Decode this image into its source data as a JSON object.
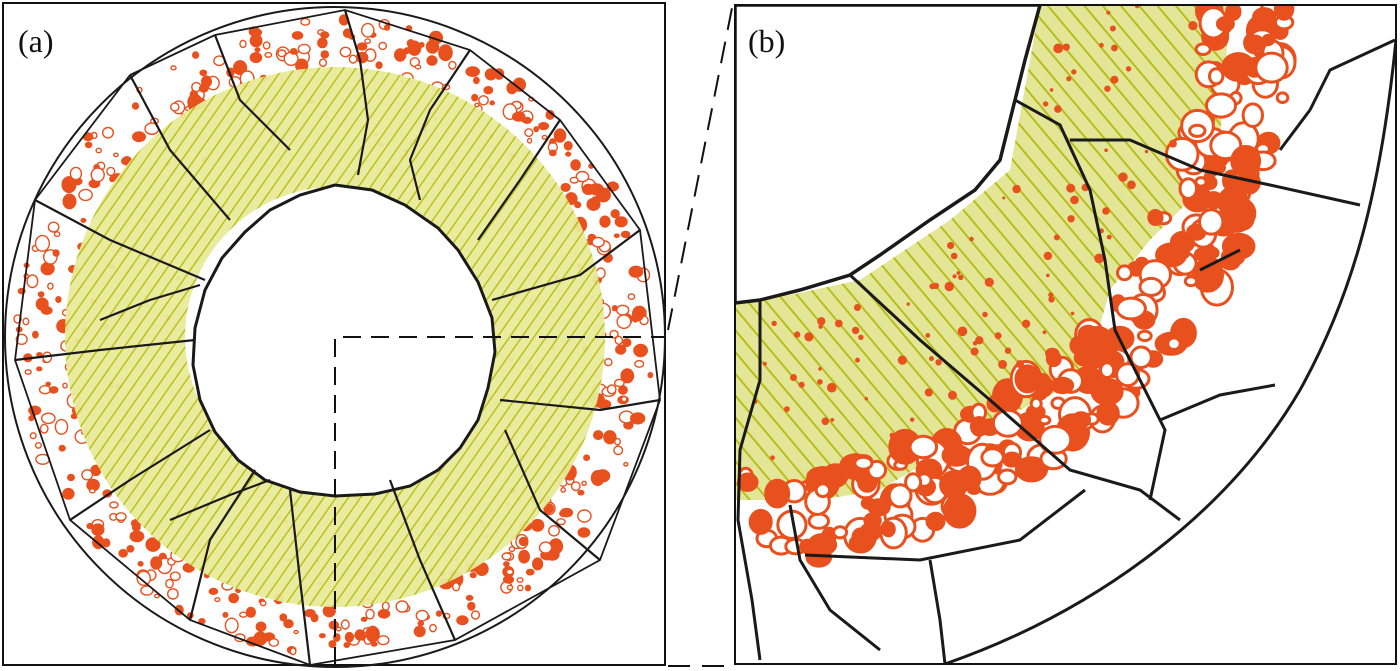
{
  "panels": {
    "a": {
      "label": "(a)"
    },
    "b": {
      "label": "(b)"
    }
  },
  "colors": {
    "frame": "#111111",
    "crack": "#1a1a1a",
    "yellow_phase": "#c8cc1c",
    "orange_phase": "#e8501e",
    "background": "#ffffff"
  }
}
